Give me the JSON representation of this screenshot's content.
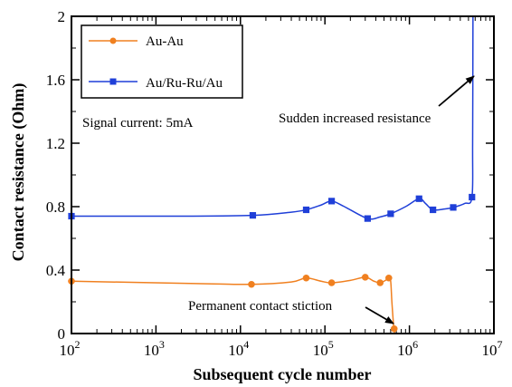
{
  "chart_data": {
    "type": "line",
    "x_scale": "log",
    "xlabel": "Subsequent cycle number",
    "ylabel": "Contact resistance (Ohm)",
    "xlim": [
      100,
      10000000
    ],
    "ylim": [
      0,
      2
    ],
    "x_ticks": [
      {
        "value": 100,
        "base": "10",
        "exp": "2"
      },
      {
        "value": 1000,
        "base": "10",
        "exp": "3"
      },
      {
        "value": 10000,
        "base": "10",
        "exp": "4"
      },
      {
        "value": 100000,
        "base": "10",
        "exp": "5"
      },
      {
        "value": 1000000,
        "base": "10",
        "exp": "6"
      },
      {
        "value": 10000000,
        "base": "10",
        "exp": "7"
      }
    ],
    "y_ticks": [
      {
        "value": 0,
        "label": "0"
      },
      {
        "value": 0.4,
        "label": "0.4"
      },
      {
        "value": 0.8,
        "label": "0.8"
      },
      {
        "value": 1.2,
        "label": "1.2"
      },
      {
        "value": 1.6,
        "label": "1.6"
      },
      {
        "value": 2,
        "label": "2"
      }
    ],
    "series": [
      {
        "name": "Au-Au",
        "color": "#f08020",
        "marker": "circle",
        "points": [
          [
            100,
            0.33
          ],
          [
            13500,
            0.31
          ],
          [
            60000,
            0.35
          ],
          [
            120000,
            0.32
          ],
          [
            300000,
            0.355
          ],
          [
            450000,
            0.32
          ],
          [
            570000,
            0.35
          ],
          [
            660000,
            0.03
          ]
        ],
        "curve": [
          [
            100,
            0.33
          ],
          [
            3000,
            0.315
          ],
          [
            13500,
            0.31
          ],
          [
            40000,
            0.325
          ],
          [
            60000,
            0.35
          ],
          [
            90000,
            0.33
          ],
          [
            120000,
            0.32
          ],
          [
            200000,
            0.335
          ],
          [
            300000,
            0.355
          ],
          [
            380000,
            0.33
          ],
          [
            450000,
            0.32
          ],
          [
            520000,
            0.335
          ],
          [
            570000,
            0.35
          ],
          [
            600000,
            0.33
          ],
          [
            620000,
            0.2
          ],
          [
            650000,
            0.05
          ],
          [
            670000,
            0.0
          ]
        ]
      },
      {
        "name": "Au/Ru-Ru/Au",
        "color": "#1f3fd8",
        "marker": "square",
        "points": [
          [
            100,
            0.74
          ],
          [
            14000,
            0.745
          ],
          [
            60000,
            0.78
          ],
          [
            120000,
            0.835
          ],
          [
            320000,
            0.725
          ],
          [
            600000,
            0.755
          ],
          [
            1300000,
            0.85
          ],
          [
            1900000,
            0.78
          ],
          [
            3300000,
            0.795
          ],
          [
            5500000,
            0.86
          ]
        ],
        "curve": [
          [
            100,
            0.74
          ],
          [
            2000,
            0.74
          ],
          [
            14000,
            0.745
          ],
          [
            40000,
            0.765
          ],
          [
            60000,
            0.78
          ],
          [
            90000,
            0.81
          ],
          [
            120000,
            0.835
          ],
          [
            170000,
            0.8
          ],
          [
            320000,
            0.725
          ],
          [
            450000,
            0.735
          ],
          [
            600000,
            0.755
          ],
          [
            900000,
            0.8
          ],
          [
            1300000,
            0.85
          ],
          [
            1550000,
            0.82
          ],
          [
            1900000,
            0.78
          ],
          [
            2600000,
            0.785
          ],
          [
            3300000,
            0.795
          ],
          [
            4500000,
            0.82
          ],
          [
            5500000,
            0.86
          ],
          [
            5600000,
            1.2
          ],
          [
            5650000,
            2.0
          ]
        ]
      }
    ],
    "legend_position": "top-left",
    "annotations": {
      "signal_current": "Signal current: 5mA",
      "sudden": "Sudden increased resistance",
      "stiction": "Permanent contact stiction"
    }
  }
}
